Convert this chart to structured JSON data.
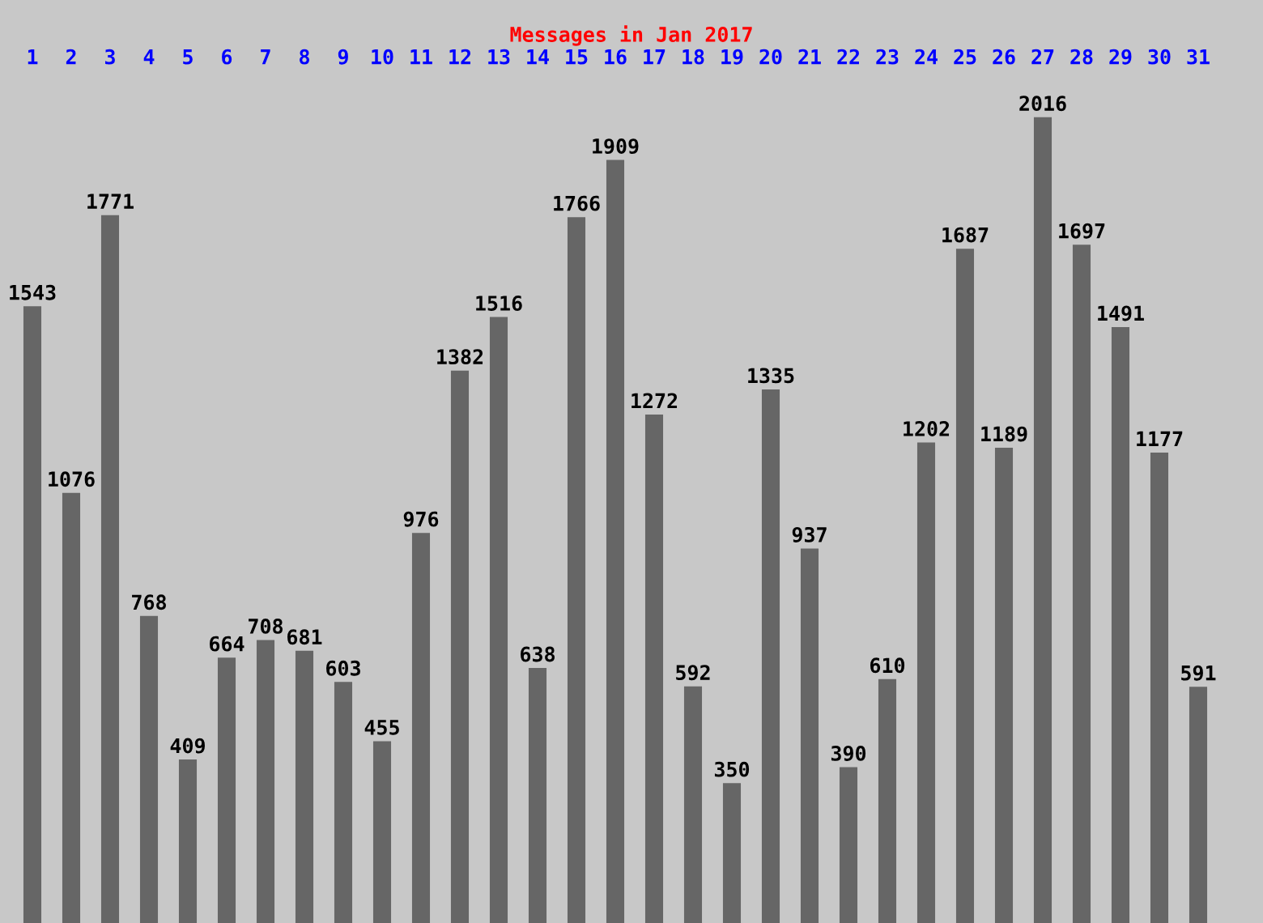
{
  "chart_data": {
    "type": "bar",
    "title": "Messages in Jan 2017",
    "categories": [
      "1",
      "2",
      "3",
      "4",
      "5",
      "6",
      "7",
      "8",
      "9",
      "10",
      "11",
      "12",
      "13",
      "14",
      "15",
      "16",
      "17",
      "18",
      "19",
      "20",
      "21",
      "22",
      "23",
      "24",
      "25",
      "26",
      "27",
      "28",
      "29",
      "30",
      "31"
    ],
    "values": [
      1543,
      1076,
      1771,
      768,
      409,
      664,
      708,
      681,
      603,
      455,
      976,
      1382,
      1516,
      638,
      1766,
      1909,
      1272,
      592,
      350,
      1335,
      937,
      390,
      610,
      1202,
      1687,
      1189,
      2016,
      1697,
      1491,
      1177,
      591
    ],
    "color": "#666666",
    "data_labels": true,
    "grid": false,
    "legend": false
  }
}
